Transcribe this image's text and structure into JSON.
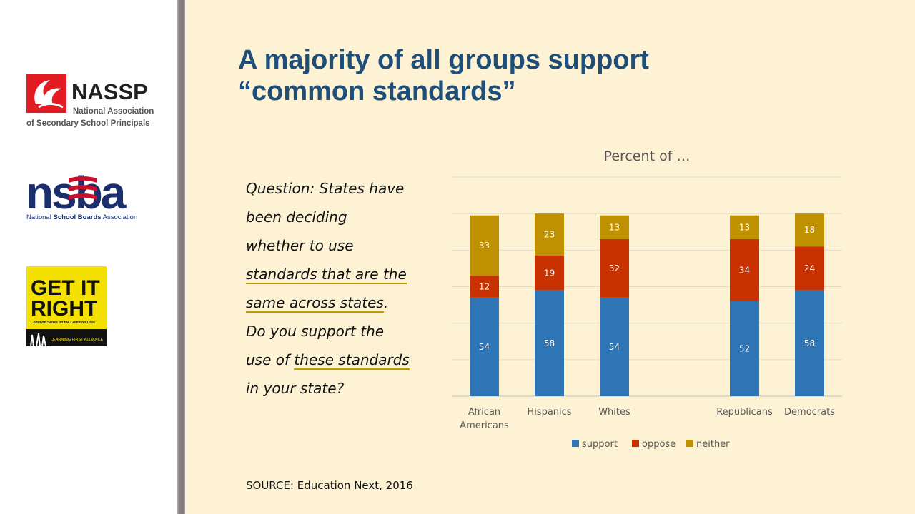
{
  "title_lines": [
    "A majority of all groups support",
    "“common standards”"
  ],
  "question": {
    "l1": "Question: States have",
    "l2": "been deciding",
    "l3": "whether to use",
    "l4": "standards that are the",
    "l5a": "same across states",
    "l5b": ".",
    "l6": "Do you support the",
    "l7a": "use of ",
    "l7b": "these standards",
    "l8": "in your state?"
  },
  "source": "SOURCE: Education Next, 2016",
  "logos": {
    "nassp_name": "NASSP",
    "nassp_line1": "National Association",
    "nassp_line2": "of Secondary School Principals",
    "nsba_name": "nsba",
    "nsba_sub_a": "National ",
    "nsba_sub_b": "School Boards",
    "nsba_sub_c": " Association",
    "getit_l1": "GET IT",
    "getit_l2": "RIGHT",
    "getit_tag": "Common Sense on the Common Core",
    "getit_alliance": "LEARNING FIRST ALLIANCE"
  },
  "chart_data": {
    "type": "bar",
    "stacked": true,
    "title": "Percent of …",
    "categories": [
      "African Americans",
      "Hispanics",
      "Whites",
      "",
      "Republicans",
      "Democrats"
    ],
    "series": [
      {
        "name": "support",
        "color": "#2e75b6",
        "values": [
          54,
          58,
          54,
          null,
          52,
          58
        ]
      },
      {
        "name": "oppose",
        "color": "#c83200",
        "values": [
          12,
          19,
          32,
          null,
          34,
          24
        ]
      },
      {
        "name": "neither",
        "color": "#bf9000",
        "values": [
          33,
          23,
          13,
          null,
          13,
          18
        ]
      }
    ],
    "ylim": [
      0,
      120
    ],
    "grid": true,
    "legend_position": "bottom"
  }
}
